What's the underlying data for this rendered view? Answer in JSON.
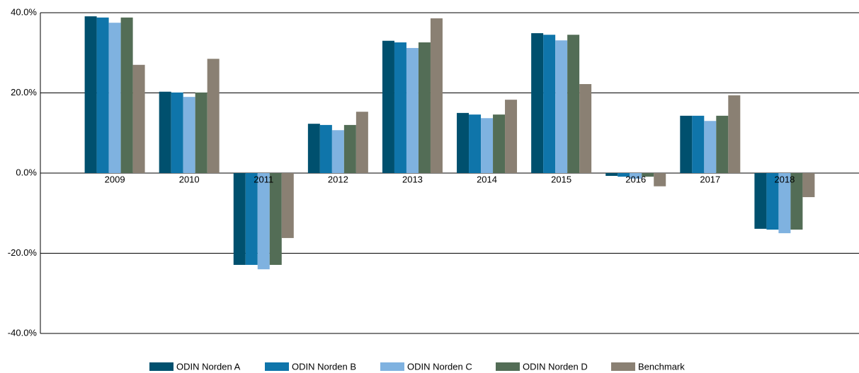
{
  "chart_data": {
    "type": "bar",
    "categories": [
      "2009",
      "2010",
      "2011",
      "2012",
      "2013",
      "2014",
      "2015",
      "2016",
      "2017",
      "2018"
    ],
    "series": [
      {
        "name": "ODIN Norden A",
        "color": "#00506e",
        "values": [
          39.1,
          20.3,
          -22.9,
          12.3,
          33.0,
          15.0,
          34.9,
          -0.7,
          14.3,
          -13.9
        ]
      },
      {
        "name": "ODIN Norden B",
        "color": "#0f75aa",
        "values": [
          38.8,
          20.1,
          -22.9,
          12.0,
          32.6,
          14.6,
          34.5,
          -0.9,
          14.3,
          -14.1
        ]
      },
      {
        "name": "ODIN Norden C",
        "color": "#7fb2e0",
        "values": [
          37.5,
          19.0,
          -24.0,
          10.7,
          31.2,
          13.7,
          33.1,
          -1.4,
          13.0,
          -15.0
        ]
      },
      {
        "name": "ODIN Norden D",
        "color": "#536d56",
        "values": [
          38.8,
          20.1,
          -22.9,
          12.0,
          32.6,
          14.6,
          34.5,
          -0.9,
          14.3,
          -14.1
        ]
      },
      {
        "name": "Benchmark",
        "color": "#8a8073",
        "values": [
          27.0,
          28.5,
          -16.2,
          15.3,
          38.6,
          18.3,
          22.2,
          -3.3,
          19.4,
          -6.0
        ]
      }
    ],
    "ylim": [
      -40,
      40
    ],
    "yticks": [
      {
        "value": -40,
        "label": "-40.0%"
      },
      {
        "value": -20,
        "label": "-20.0%"
      },
      {
        "value": 0,
        "label": "0.0%"
      },
      {
        "value": 20,
        "label": "20.0%"
      },
      {
        "value": 40,
        "label": "40.0%"
      }
    ],
    "grid": true,
    "legend": "bottom"
  }
}
